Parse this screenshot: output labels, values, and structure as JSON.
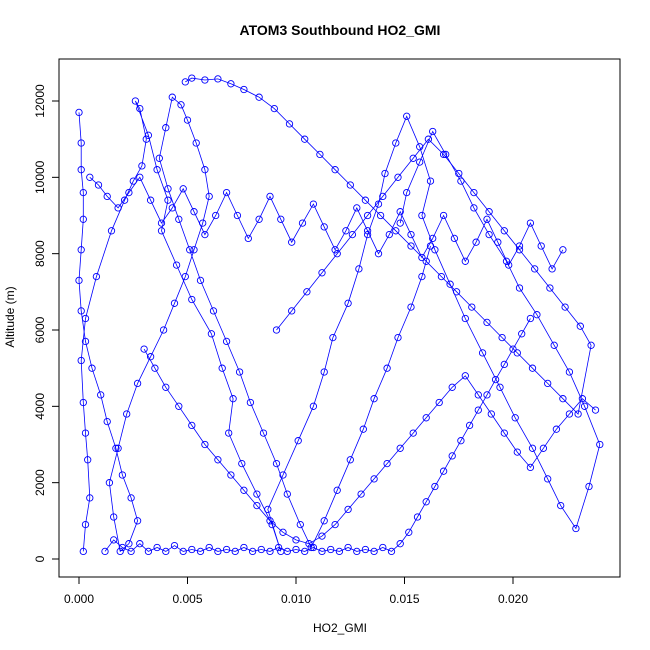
{
  "chart_data": {
    "type": "scatter",
    "title": "ATOM3 Southbound HO2_GMI",
    "xlabel": "HO2_GMI",
    "ylabel": "Altitude (m)",
    "xlim": [
      0.0,
      0.024
    ],
    "ylim": [
      0,
      12700
    ],
    "x_ticks": [
      "0.000",
      "0.005",
      "0.010",
      "0.015",
      "0.020"
    ],
    "y_ticks": [
      "0",
      "2000",
      "4000",
      "6000",
      "8000",
      "10000",
      "12000"
    ],
    "grid": false,
    "legend": "none",
    "series_color": "#0000ff",
    "marker": "open-circle",
    "series": [
      {
        "x": [
          0.0002,
          0.0003,
          0.0005,
          0.0004,
          0.0003,
          0.0002,
          0.0001,
          0.0003,
          0.0008,
          0.0015,
          0.0021,
          0.0025,
          0.0029,
          0.0031,
          0.0028,
          0.0026,
          0.0032,
          0.0036,
          0.0041,
          0.0038,
          0.0045,
          0.0052,
          0.0061,
          0.0066,
          0.0071,
          0.0069,
          0.0075,
          0.0082,
          0.0089,
          0.0093,
          0.0087,
          0.0094,
          0.0101,
          0.0108,
          0.0113,
          0.0117,
          0.0124,
          0.0129,
          0.0133,
          0.0138,
          0.0141,
          0.0146,
          0.0151,
          0.0157,
          0.0162,
          0.0158,
          0.0164,
          0.0171,
          0.0178,
          0.0186,
          0.0194,
          0.0201,
          0.0209,
          0.0216,
          0.0222,
          0.0229,
          0.0235,
          0.024,
          0.0233,
          0.0226,
          0.0219,
          0.0211,
          0.0203,
          0.0197,
          0.0189,
          0.0182,
          0.0176,
          0.0169,
          0.0163,
          0.0157,
          0.0151,
          0.0148
        ],
        "y": [
          200,
          900,
          1600,
          2600,
          3300,
          4100,
          5200,
          6300,
          7400,
          8600,
          9400,
          9900,
          10300,
          11000,
          11800,
          12000,
          11100,
          10200,
          9400,
          8600,
          7700,
          6800,
          5900,
          5000,
          4200,
          3300,
          2500,
          1700,
          900,
          200,
          1300,
          2200,
          3100,
          4000,
          4900,
          5800,
          6700,
          7600,
          8500,
          9300,
          10100,
          10900,
          11600,
          10800,
          9900,
          9000,
          8100,
          7200,
          6300,
          5400,
          4500,
          3700,
          2900,
          2100,
          1400,
          800,
          1900,
          3000,
          4000,
          4900,
          5600,
          6400,
          7100,
          7800,
          8500,
          9200,
          9900,
          10600,
          11200,
          10400,
          9600,
          8800
        ]
      },
      {
        "x": [
          0.0,
          0.0001,
          0.0001,
          0.0002,
          0.0002,
          0.0001,
          0.0,
          0.0001,
          0.0003,
          0.0006,
          0.001,
          0.0013,
          0.0017,
          0.002,
          0.0024,
          0.0027,
          0.0023,
          0.0019,
          0.0016,
          0.0014,
          0.0018,
          0.0022,
          0.0027,
          0.0033,
          0.0039,
          0.0044,
          0.0049,
          0.0053,
          0.0057,
          0.006,
          0.0058,
          0.0054,
          0.005,
          0.0047,
          0.0043,
          0.004,
          0.0037,
          0.0041,
          0.0046,
          0.0051,
          0.0056,
          0.0062,
          0.0068,
          0.0074,
          0.0079,
          0.0085,
          0.0091,
          0.0096,
          0.0102,
          0.0107,
          0.0113,
          0.0119,
          0.0125,
          0.0131,
          0.0136,
          0.0142,
          0.0147,
          0.0153,
          0.0158,
          0.0162
        ],
        "y": [
          11700,
          10900,
          10200,
          9600,
          8900,
          8100,
          7300,
          6500,
          5700,
          5000,
          4300,
          3600,
          2900,
          2200,
          1600,
          1000,
          400,
          200,
          1100,
          2000,
          2900,
          3800,
          4600,
          5300,
          6000,
          6700,
          7400,
          8100,
          8800,
          9500,
          10200,
          10900,
          11500,
          11900,
          12100,
          11300,
          10500,
          9700,
          8900,
          8100,
          7300,
          6500,
          5700,
          4900,
          4100,
          3300,
          2500,
          1700,
          900,
          300,
          1000,
          1800,
          2600,
          3400,
          4200,
          5000,
          5800,
          6600,
          7400,
          8200
        ]
      },
      {
        "x": [
          0.0049,
          0.0052,
          0.0058,
          0.0064,
          0.007,
          0.0076,
          0.0083,
          0.009,
          0.0097,
          0.0104,
          0.0111,
          0.0118,
          0.0125,
          0.0132,
          0.0139,
          0.0146,
          0.0153,
          0.016,
          0.0167,
          0.0174,
          0.0181,
          0.0188,
          0.0195,
          0.0202,
          0.0209,
          0.0216,
          0.0223,
          0.023,
          0.0236,
          0.0231,
          0.0224,
          0.0217,
          0.021,
          0.0203,
          0.0196,
          0.0189,
          0.0182,
          0.0175,
          0.0168,
          0.0161,
          0.0154,
          0.0147,
          0.014,
          0.0133,
          0.0126,
          0.0119,
          0.0112,
          0.0105,
          0.0098,
          0.0091
        ],
        "y": [
          12500,
          12600,
          12550,
          12580,
          12450,
          12300,
          12100,
          11800,
          11400,
          11000,
          10600,
          10200,
          9800,
          9400,
          9000,
          8600,
          8200,
          7800,
          7400,
          7000,
          6600,
          6200,
          5800,
          5400,
          5000,
          4600,
          4200,
          3800,
          5600,
          6100,
          6600,
          7100,
          7600,
          8100,
          8600,
          9100,
          9600,
          10100,
          10600,
          11000,
          10500,
          10000,
          9500,
          9000,
          8500,
          8000,
          7500,
          7000,
          6500,
          6000
        ]
      },
      {
        "x": [
          0.0012,
          0.0016,
          0.002,
          0.0024,
          0.0028,
          0.0032,
          0.0036,
          0.004,
          0.0044,
          0.0048,
          0.0052,
          0.0056,
          0.006,
          0.0064,
          0.0068,
          0.0072,
          0.0076,
          0.008,
          0.0084,
          0.0088,
          0.0092,
          0.0096,
          0.01,
          0.0104,
          0.0108,
          0.0112,
          0.0116,
          0.012,
          0.0124,
          0.0128,
          0.0132,
          0.0136,
          0.014,
          0.0144,
          0.0148,
          0.0152,
          0.0156,
          0.016,
          0.0164,
          0.0168,
          0.0172,
          0.0176,
          0.018,
          0.0184,
          0.0188,
          0.0192,
          0.0196,
          0.02,
          0.0204,
          0.0208
        ],
        "y": [
          200,
          500,
          300,
          200,
          400,
          200,
          300,
          200,
          350,
          200,
          250,
          200,
          300,
          200,
          250,
          200,
          300,
          200,
          250,
          200,
          300,
          200,
          250,
          200,
          300,
          200,
          250,
          200,
          300,
          200,
          250,
          200,
          300,
          200,
          400,
          700,
          1100,
          1500,
          1900,
          2300,
          2700,
          3100,
          3500,
          3900,
          4300,
          4700,
          5100,
          5500,
          5900,
          6300
        ]
      },
      {
        "x": [
          0.0005,
          0.0009,
          0.0013,
          0.0018,
          0.0023,
          0.0028,
          0.0033,
          0.0038,
          0.0043,
          0.0048,
          0.0053,
          0.0058,
          0.0063,
          0.0068,
          0.0073,
          0.0078,
          0.0083,
          0.0088,
          0.0093,
          0.0098,
          0.0103,
          0.0108,
          0.0113,
          0.0118,
          0.0123,
          0.0128,
          0.0133,
          0.0138,
          0.0143,
          0.0148,
          0.0153,
          0.0158,
          0.0163,
          0.0168,
          0.0173,
          0.0178,
          0.0183,
          0.0188,
          0.0193,
          0.0198,
          0.0203,
          0.0208,
          0.0213,
          0.0218,
          0.0223
        ],
        "y": [
          10000,
          9800,
          9500,
          9200,
          9600,
          10000,
          9400,
          8800,
          9200,
          9700,
          9100,
          8500,
          9000,
          9600,
          9000,
          8400,
          8900,
          9500,
          8900,
          8300,
          8800,
          9300,
          8700,
          8100,
          8600,
          9200,
          8600,
          8000,
          8500,
          9100,
          8500,
          7900,
          8400,
          9000,
          8400,
          7800,
          8300,
          8900,
          8300,
          7700,
          8200,
          8800,
          8200,
          7600,
          8100
        ]
      },
      {
        "x": [
          0.003,
          0.0035,
          0.004,
          0.0046,
          0.0052,
          0.0058,
          0.0064,
          0.007,
          0.0076,
          0.0082,
          0.0088,
          0.0094,
          0.01,
          0.0106,
          0.0112,
          0.0118,
          0.0124,
          0.013,
          0.0136,
          0.0142,
          0.0148,
          0.0154,
          0.016,
          0.0166,
          0.0172,
          0.0178,
          0.0184,
          0.019,
          0.0196,
          0.0202,
          0.0208,
          0.0214,
          0.022,
          0.0226,
          0.0232,
          0.0238
        ],
        "y": [
          5500,
          5000,
          4500,
          4000,
          3500,
          3000,
          2600,
          2200,
          1800,
          1400,
          1000,
          700,
          500,
          400,
          600,
          900,
          1300,
          1700,
          2100,
          2500,
          2900,
          3300,
          3700,
          4100,
          4500,
          4800,
          4300,
          3800,
          3300,
          2800,
          2400,
          2900,
          3400,
          3800,
          4200,
          3900
        ]
      }
    ]
  }
}
